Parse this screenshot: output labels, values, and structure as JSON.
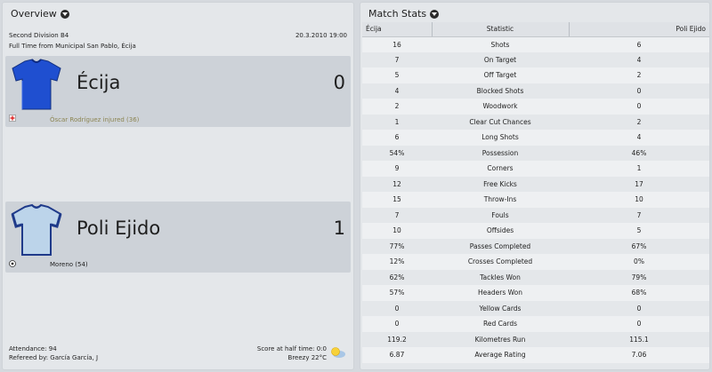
{
  "overview": {
    "title": "Overview",
    "competition": "Second Division B4",
    "date": "20.3.2010 19:00",
    "venue_line": "Full Time from Municipal San Pablo, Écija",
    "home": {
      "name": "Écija",
      "score": "0",
      "event": "Óscar Rodríguez injured (36)",
      "kit_color": "#1f4fd0"
    },
    "away": {
      "name": "Poli Ejido",
      "score": "1",
      "event": "Moreno (54)",
      "kit_color": "#bcd4ea",
      "kit_trim": "#1f3a8a"
    },
    "attendance": "Attendance: 94",
    "referee": "Refereed by: García García, J",
    "half_time": "Score at half time: 0:0",
    "weather": "Breezy 22°C"
  },
  "stats": {
    "title": "Match Stats",
    "headers": {
      "home": "Écija",
      "stat": "Statistic",
      "away": "Poli Ejido"
    },
    "rows": [
      {
        "home": "16",
        "label": "Shots",
        "away": "6"
      },
      {
        "home": "7",
        "label": "On Target",
        "away": "4"
      },
      {
        "home": "5",
        "label": "Off Target",
        "away": "2"
      },
      {
        "home": "4",
        "label": "Blocked Shots",
        "away": "0"
      },
      {
        "home": "2",
        "label": "Woodwork",
        "away": "0"
      },
      {
        "home": "1",
        "label": "Clear Cut Chances",
        "away": "2"
      },
      {
        "home": "6",
        "label": "Long Shots",
        "away": "4"
      },
      {
        "home": "54%",
        "label": "Possession",
        "away": "46%"
      },
      {
        "home": "9",
        "label": "Corners",
        "away": "1"
      },
      {
        "home": "12",
        "label": "Free Kicks",
        "away": "17"
      },
      {
        "home": "15",
        "label": "Throw-Ins",
        "away": "10"
      },
      {
        "home": "7",
        "label": "Fouls",
        "away": "7"
      },
      {
        "home": "10",
        "label": "Offsides",
        "away": "5"
      },
      {
        "home": "77%",
        "label": "Passes Completed",
        "away": "67%"
      },
      {
        "home": "12%",
        "label": "Crosses Completed",
        "away": "0%"
      },
      {
        "home": "62%",
        "label": "Tackles Won",
        "away": "79%"
      },
      {
        "home": "57%",
        "label": "Headers Won",
        "away": "68%"
      },
      {
        "home": "0",
        "label": "Yellow Cards",
        "away": "0"
      },
      {
        "home": "0",
        "label": "Red Cards",
        "away": "0"
      },
      {
        "home": "119.2",
        "label": "Kilometres Run",
        "away": "115.1"
      },
      {
        "home": "6.87",
        "label": "Average Rating",
        "away": "7.06"
      }
    ]
  }
}
